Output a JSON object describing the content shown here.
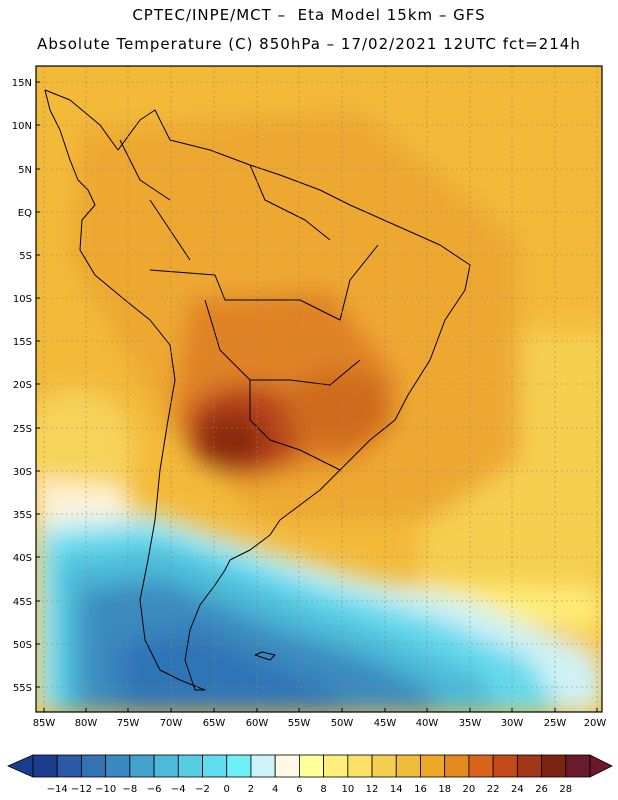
{
  "header": {
    "line1": "CPTEC/INPE/MCT –  Eta Model 15km – GFS",
    "line2": "Absolute Temperature (C) 850hPa – 17/02/2021 12UTC fct=214h"
  },
  "map": {
    "lat_labels": [
      "15N",
      "10N",
      "5N",
      "EQ",
      "5S",
      "10S",
      "15S",
      "20S",
      "25S",
      "30S",
      "35S",
      "40S",
      "45S",
      "50S",
      "55S"
    ],
    "lon_labels": [
      "85W",
      "80W",
      "75W",
      "70W",
      "65W",
      "60W",
      "55W",
      "50W",
      "45W",
      "40W",
      "35W",
      "30W",
      "25W",
      "20W"
    ],
    "lat_values": [
      15,
      10,
      5,
      0,
      -5,
      -10,
      -15,
      -20,
      -25,
      -30,
      -35,
      -40,
      -45,
      -50,
      -55
    ],
    "lon_values": [
      -85,
      -80,
      -75,
      -70,
      -65,
      -60,
      -55,
      -50,
      -45,
      -40,
      -35,
      -30,
      -25,
      -20
    ]
  },
  "colorbar": {
    "labels": [
      "-14",
      "-12",
      "-10",
      "-8",
      "-6",
      "-4",
      "-2",
      "0",
      "2",
      "4",
      "6",
      "8",
      "10",
      "12",
      "14",
      "16",
      "18",
      "20",
      "22",
      "24",
      "26",
      "28"
    ],
    "colors": [
      "#1a3d8f",
      "#2a5aa5",
      "#3373b3",
      "#3a8ac0",
      "#43a3cc",
      "#4cbad8",
      "#56cde3",
      "#5fdcef",
      "#6ef0f8",
      "#cdf3fb",
      "#fff8e6",
      "#ffff9c",
      "#ffee7a",
      "#fbe066",
      "#f5cf4f",
      "#f0bc3b",
      "#eca928",
      "#e48a1c",
      "#d8651b",
      "#c44a1b",
      "#a23618",
      "#7d2313",
      "#6a1a2a"
    ]
  },
  "palette": {
    "ocean_warm": "#f3ba3a",
    "land_warm": "#eea832",
    "land_hot": "#d86c20",
    "core_hot": "#9a2e10",
    "cold_light": "#63d9ee",
    "cold_deep": "#2f74b8"
  }
}
